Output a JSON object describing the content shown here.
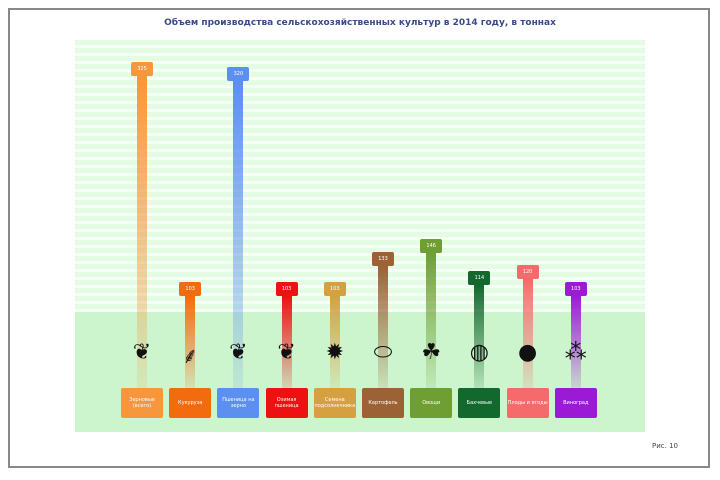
{
  "title": "Объем производства сельскохозяйственных культур в 2014 году, в тоннах",
  "figure_label": "Рис. 10",
  "chart_data": {
    "type": "bar",
    "title": "Объем производства сельскохозяйственных культур в 2014 году, в тоннах",
    "grid": true,
    "categories": [
      "Зерновые (всего)",
      "Кукуруза",
      "Пшеница на зерно",
      "Озимая пшеница",
      "Семена подсолнечника",
      "Картофель",
      "Овощи",
      "Бахчевые",
      "Плоды и ягоды",
      "Виноград"
    ],
    "values": [
      325,
      103,
      320,
      103,
      103,
      133,
      146,
      114,
      120,
      103
    ],
    "colors": [
      "#f7963c",
      "#f26b0f",
      "#5b8ff0",
      "#ee1111",
      "#d5a040",
      "#9b6235",
      "#6f9e32",
      "#13682e",
      "#f56a6a",
      "#9b1ad6"
    ],
    "icons": [
      "wheat-icon",
      "corn-icon",
      "wheat-icon",
      "wheat-icon",
      "sunflower-icon",
      "potato-icon",
      "vegetable-icon",
      "melon-icon",
      "fruit-icon",
      "grapes-icon"
    ]
  }
}
